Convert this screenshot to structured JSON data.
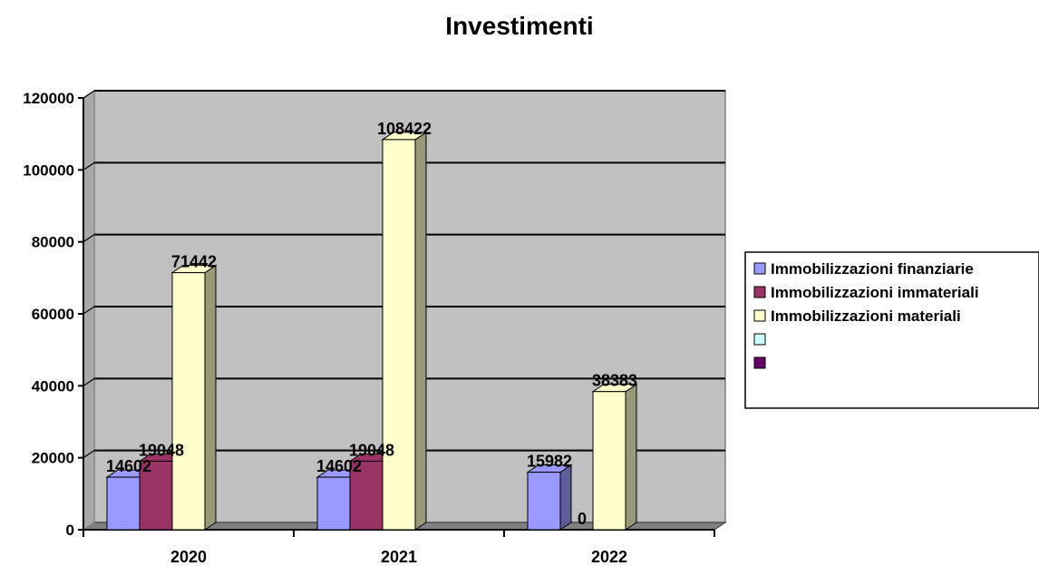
{
  "chart_data": {
    "type": "bar",
    "title": "Investimenti",
    "categories": [
      "2020",
      "2021",
      "2022"
    ],
    "series": [
      {
        "name": "Immobilizzazioni finanziarie",
        "values": [
          14602,
          14602,
          15982
        ],
        "color": "#9999ff",
        "side_color": "#5c5c99",
        "labels": [
          "14602",
          "14602",
          "15982"
        ]
      },
      {
        "name": "Immobilizzazioni immateriali",
        "values": [
          19048,
          19048,
          0
        ],
        "color": "#993366",
        "side_color": "#5c1f3d",
        "labels": [
          "19048",
          "19048",
          "0"
        ]
      },
      {
        "name": "Immobilizzazioni materiali",
        "values": [
          71442,
          108422,
          38383
        ],
        "color": "#ffffcc",
        "side_color": "#99997a",
        "labels": [
          "71442",
          "108422",
          "38383"
        ]
      }
    ],
    "legend_extra": [
      {
        "name": "",
        "color": "#ccffff"
      },
      {
        "name": "",
        "color": "#660066"
      }
    ],
    "y_ticks": [
      "0",
      "20000",
      "40000",
      "60000",
      "80000",
      "100000",
      "120000"
    ],
    "ylim": [
      0,
      120000
    ],
    "grid": true,
    "legend_position": "right",
    "plot_background": "#c0c0c0"
  }
}
